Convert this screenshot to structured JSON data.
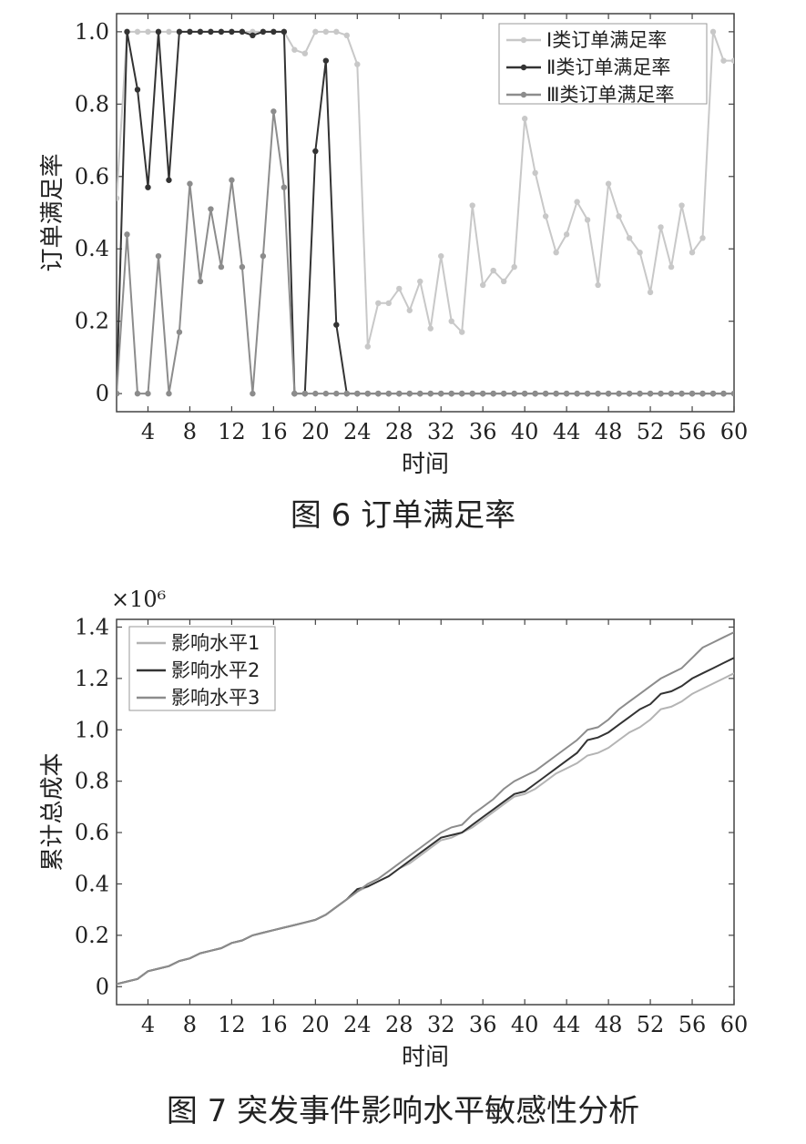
{
  "chart_data": [
    {
      "type": "line",
      "caption": "图 6   订单满足率",
      "xlabel": "时间",
      "ylabel": "订单满足率",
      "xlim": [
        1,
        60
      ],
      "ylim": [
        -0.05,
        1.05
      ],
      "xticks": [
        4,
        8,
        12,
        16,
        20,
        24,
        28,
        32,
        36,
        40,
        44,
        48,
        52,
        56,
        60
      ],
      "yticks": [
        0,
        0.2,
        0.4,
        0.6,
        0.8,
        1.0
      ],
      "ytick_labels": [
        "0",
        "0.2",
        "0.4",
        "0.6",
        "0.8",
        "1.0"
      ],
      "legend_position": "top-right",
      "x": [
        1,
        2,
        3,
        4,
        5,
        6,
        7,
        8,
        9,
        10,
        11,
        12,
        13,
        14,
        15,
        16,
        17,
        18,
        19,
        20,
        21,
        22,
        23,
        24,
        25,
        26,
        27,
        28,
        29,
        30,
        31,
        32,
        33,
        34,
        35,
        36,
        37,
        38,
        39,
        40,
        41,
        42,
        43,
        44,
        45,
        46,
        47,
        48,
        49,
        50,
        51,
        52,
        53,
        54,
        55,
        56,
        57,
        58,
        59,
        60
      ],
      "series": [
        {
          "name": "Ⅰ类订单满足率",
          "color": "#c8c8c8",
          "values": [
            0.54,
            1.0,
            1.0,
            1.0,
            1.0,
            1.0,
            1.0,
            1.0,
            1.0,
            1.0,
            1.0,
            1.0,
            1.0,
            1.0,
            1.0,
            1.0,
            1.0,
            0.95,
            0.94,
            1.0,
            1.0,
            1.0,
            0.99,
            0.91,
            0.13,
            0.25,
            0.25,
            0.29,
            0.23,
            0.31,
            0.18,
            0.38,
            0.2,
            0.17,
            0.52,
            0.3,
            0.34,
            0.31,
            0.35,
            0.76,
            0.61,
            0.49,
            0.39,
            0.44,
            0.53,
            0.48,
            0.3,
            0.58,
            0.49,
            0.43,
            0.39,
            0.28,
            0.46,
            0.35,
            0.52,
            0.39,
            0.43,
            1.0,
            0.92,
            0.92
          ]
        },
        {
          "name": "Ⅱ类订单满足率",
          "color": "#333333",
          "values": [
            0.0,
            1.0,
            0.84,
            0.57,
            1.0,
            0.59,
            1.0,
            1.0,
            1.0,
            1.0,
            1.0,
            1.0,
            1.0,
            0.99,
            1.0,
            1.0,
            1.0,
            0.0,
            0.0,
            0.67,
            0.92,
            0.19,
            0.0,
            0.0,
            0.0,
            0.0,
            0.0,
            0.0,
            0.0,
            0.0,
            0.0,
            0.0,
            0.0,
            0.0,
            0.0,
            0.0,
            0.0,
            0.0,
            0.0,
            0.0,
            0.0,
            0.0,
            0.0,
            0.0,
            0.0,
            0.0,
            0.0,
            0.0,
            0.0,
            0.0,
            0.0,
            0.0,
            0.0,
            0.0,
            0.0,
            0.0,
            0.0,
            0.0,
            0.0,
            0.0
          ]
        },
        {
          "name": "Ⅲ类订单满足率",
          "color": "#8c8c8c",
          "values": [
            0.0,
            0.44,
            0.0,
            0.0,
            0.38,
            0.0,
            0.17,
            0.58,
            0.31,
            0.51,
            0.35,
            0.59,
            0.35,
            0.0,
            0.38,
            0.78,
            0.57,
            0.0,
            0.0,
            0.0,
            0.0,
            0.0,
            0.0,
            0.0,
            0.0,
            0.0,
            0.0,
            0.0,
            0.0,
            0.0,
            0.0,
            0.0,
            0.0,
            0.0,
            0.0,
            0.0,
            0.0,
            0.0,
            0.0,
            0.0,
            0.0,
            0.0,
            0.0,
            0.0,
            0.0,
            0.0,
            0.0,
            0.0,
            0.0,
            0.0,
            0.0,
            0.0,
            0.0,
            0.0,
            0.0,
            0.0,
            0.0,
            0.0,
            0.0,
            0.0
          ]
        }
      ]
    },
    {
      "type": "line",
      "caption": "图 7   突发事件影响水平敏感性分析",
      "xlabel": "时间",
      "ylabel": "累计总成本",
      "multiplier_label": "×10⁶",
      "xlim": [
        1,
        60
      ],
      "ylim": [
        -0.07,
        1.43
      ],
      "xticks": [
        4,
        8,
        12,
        16,
        20,
        24,
        28,
        32,
        36,
        40,
        44,
        48,
        52,
        56,
        60
      ],
      "yticks": [
        0,
        0.2,
        0.4,
        0.6,
        0.8,
        1.0,
        1.2,
        1.4
      ],
      "ytick_labels": [
        "0",
        "0.2",
        "0.4",
        "0.6",
        "0.8",
        "1.0",
        "1.2",
        "1.4"
      ],
      "legend_position": "top-left",
      "x": [
        1,
        2,
        3,
        4,
        5,
        6,
        7,
        8,
        9,
        10,
        11,
        12,
        13,
        14,
        15,
        16,
        17,
        18,
        19,
        20,
        21,
        22,
        23,
        24,
        25,
        26,
        27,
        28,
        29,
        30,
        31,
        32,
        33,
        34,
        35,
        36,
        37,
        38,
        39,
        40,
        41,
        42,
        43,
        44,
        45,
        46,
        47,
        48,
        49,
        50,
        51,
        52,
        53,
        54,
        55,
        56,
        57,
        58,
        59,
        60
      ],
      "series": [
        {
          "name": "影响水平1",
          "color": "#b4b4b4",
          "values": [
            0.01,
            0.02,
            0.03,
            0.06,
            0.07,
            0.08,
            0.1,
            0.11,
            0.13,
            0.14,
            0.15,
            0.17,
            0.18,
            0.2,
            0.21,
            0.22,
            0.23,
            0.24,
            0.25,
            0.26,
            0.28,
            0.31,
            0.34,
            0.37,
            0.39,
            0.41,
            0.43,
            0.46,
            0.48,
            0.51,
            0.54,
            0.57,
            0.58,
            0.6,
            0.62,
            0.65,
            0.68,
            0.71,
            0.74,
            0.75,
            0.77,
            0.8,
            0.83,
            0.85,
            0.87,
            0.9,
            0.91,
            0.93,
            0.96,
            0.99,
            1.01,
            1.04,
            1.08,
            1.09,
            1.11,
            1.14,
            1.16,
            1.18,
            1.2,
            1.22
          ]
        },
        {
          "name": "影响水平2",
          "color": "#333333",
          "values": [
            0.01,
            0.02,
            0.03,
            0.06,
            0.07,
            0.08,
            0.1,
            0.11,
            0.13,
            0.14,
            0.15,
            0.17,
            0.18,
            0.2,
            0.21,
            0.22,
            0.23,
            0.24,
            0.25,
            0.26,
            0.28,
            0.31,
            0.34,
            0.38,
            0.39,
            0.41,
            0.43,
            0.46,
            0.49,
            0.52,
            0.55,
            0.58,
            0.59,
            0.6,
            0.63,
            0.66,
            0.69,
            0.72,
            0.75,
            0.76,
            0.79,
            0.82,
            0.85,
            0.88,
            0.91,
            0.96,
            0.97,
            0.99,
            1.02,
            1.05,
            1.08,
            1.1,
            1.14,
            1.15,
            1.17,
            1.2,
            1.22,
            1.24,
            1.26,
            1.28
          ]
        },
        {
          "name": "影响水平3",
          "color": "#8c8c8c",
          "values": [
            0.01,
            0.02,
            0.03,
            0.06,
            0.07,
            0.08,
            0.1,
            0.11,
            0.13,
            0.14,
            0.15,
            0.17,
            0.18,
            0.2,
            0.21,
            0.22,
            0.23,
            0.24,
            0.25,
            0.26,
            0.28,
            0.31,
            0.34,
            0.37,
            0.4,
            0.42,
            0.45,
            0.48,
            0.51,
            0.54,
            0.57,
            0.6,
            0.62,
            0.63,
            0.67,
            0.7,
            0.73,
            0.77,
            0.8,
            0.82,
            0.84,
            0.87,
            0.9,
            0.93,
            0.96,
            1.0,
            1.01,
            1.04,
            1.08,
            1.11,
            1.14,
            1.17,
            1.2,
            1.22,
            1.24,
            1.28,
            1.32,
            1.34,
            1.36,
            1.38
          ]
        }
      ]
    }
  ]
}
